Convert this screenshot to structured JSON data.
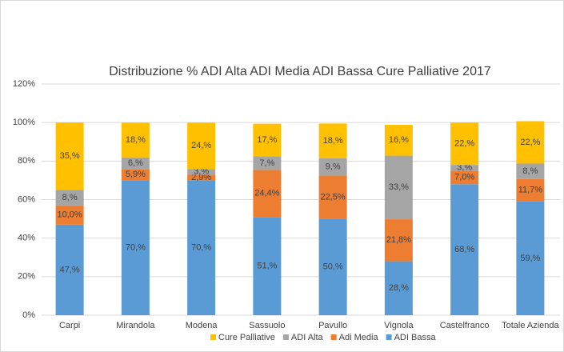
{
  "chart_data": {
    "type": "stacked_bar",
    "title": "Distribuzione % ADI Alta ADI Media ADI Bassa Cure Palliative 2017",
    "categories": [
      "Carpi",
      "Mirandola",
      "Modena",
      "Sassuolo",
      "Pavullo",
      "Vignola",
      "Castelfranco",
      "Totale Azienda"
    ],
    "series": [
      {
        "name": "ADI Bassa",
        "color": "#5b9bd5",
        "values": [
          47,
          70,
          70,
          51,
          50,
          28,
          68,
          59
        ],
        "value_labels": [
          "47,%",
          "70,%",
          "70,%",
          "51,%",
          "50,%",
          "28,%",
          "68,%",
          "59,%"
        ]
      },
      {
        "name": "Adi Media",
        "color": "#ed7d31",
        "values": [
          10.0,
          5.9,
          2.9,
          24.4,
          22.5,
          21.8,
          7.0,
          11.7
        ],
        "value_labels": [
          "10,0%",
          "5,9%",
          "2,9%",
          "24,4%",
          "22,5%",
          "21,8%",
          "7,0%",
          "11,7%"
        ]
      },
      {
        "name": "ADI Alta",
        "color": "#a5a5a5",
        "values": [
          8,
          6,
          3,
          7,
          9,
          33,
          3,
          8
        ],
        "value_labels": [
          "8,%",
          "6,%",
          "3,%",
          "7,%",
          "9,%",
          "33,%",
          "3,%",
          "8,%"
        ]
      },
      {
        "name": "Cure Palliative",
        "color": "#ffc000",
        "values": [
          35,
          18,
          24,
          17,
          18,
          16,
          22,
          22
        ],
        "value_labels": [
          "35,%",
          "18,%",
          "24,%",
          "17,%",
          "18,%",
          "16,%",
          "22,%",
          "22,%"
        ]
      }
    ],
    "legend_order": [
      3,
      2,
      1,
      0
    ],
    "ylim": [
      0,
      120
    ],
    "yticks": [
      {
        "value": 0,
        "label": "0%"
      },
      {
        "value": 20,
        "label": "20%"
      },
      {
        "value": 40,
        "label": "40%"
      },
      {
        "value": 60,
        "label": "60%"
      },
      {
        "value": 80,
        "label": "80%"
      },
      {
        "value": 100,
        "label": "100%"
      },
      {
        "value": 120,
        "label": "120%"
      }
    ],
    "grid": true,
    "legend": "bottom"
  }
}
